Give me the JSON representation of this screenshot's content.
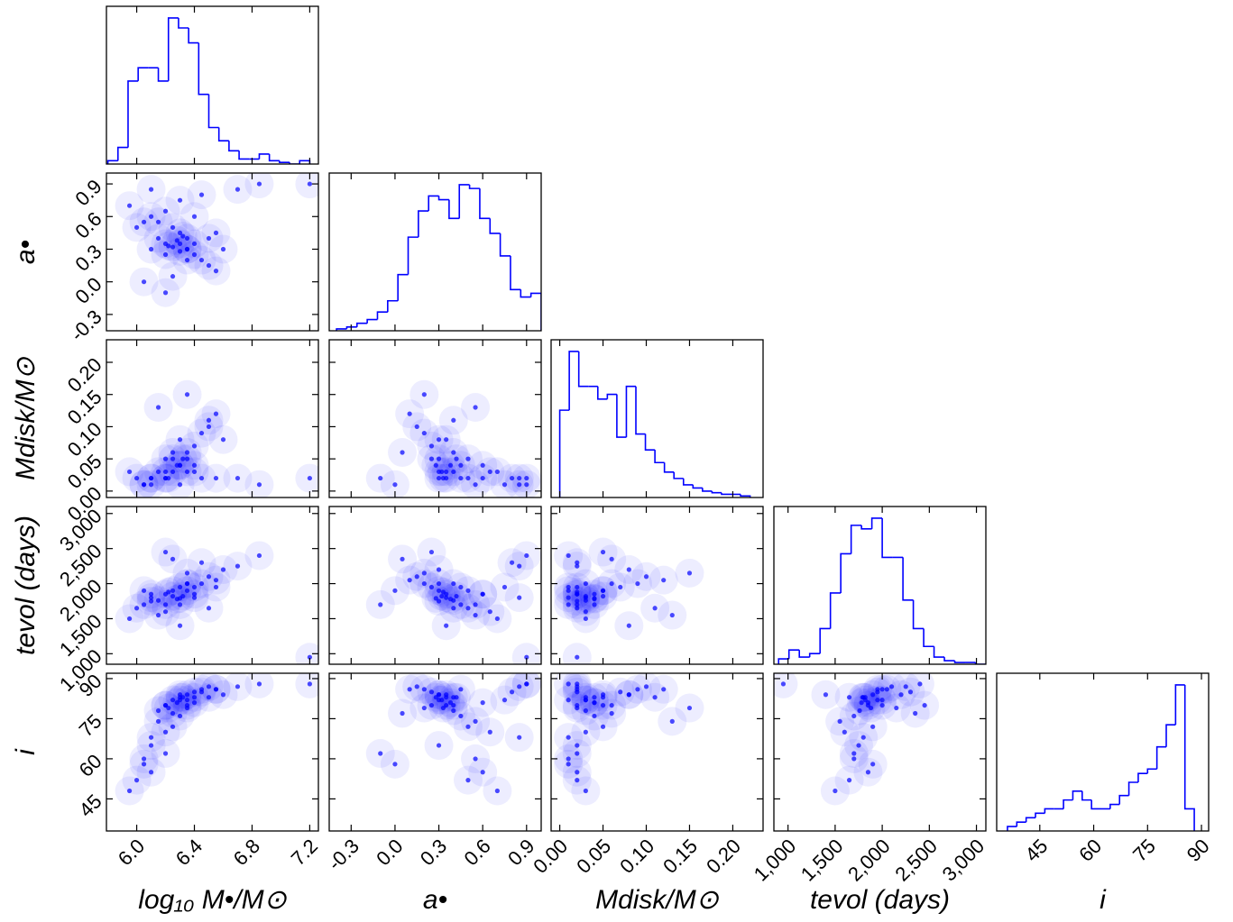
{
  "chart_data": {
    "type": "corner",
    "color": "#0000ff",
    "parameters": [
      {
        "label": "log₁₀ M•/M⊙",
        "lim": [
          5.79,
          7.26
        ],
        "ticks": [
          {
            "value": 6.0,
            "label": "6.0"
          },
          6.4,
          6.8,
          7.2
        ],
        "bins": [
          5.8,
          5.87,
          5.94,
          6.01,
          6.08,
          6.15,
          6.22,
          6.29,
          6.36,
          6.43,
          6.5,
          6.57,
          6.64,
          6.71,
          6.78,
          6.85,
          6.92,
          6.99,
          7.06,
          7.13,
          7.2
        ],
        "counts": [
          2,
          10,
          50,
          58,
          58,
          50,
          88,
          82,
          73,
          42,
          22,
          14,
          8,
          3,
          3,
          6,
          2,
          1,
          0,
          2
        ]
      },
      {
        "label": "a•",
        "lim": [
          -0.45,
          1.0
        ],
        "ticks": [
          -0.3,
          {
            "value": 0.0,
            "label": "0.0"
          },
          0.3,
          0.6,
          0.9
        ],
        "bins": [
          -0.4,
          -0.33,
          -0.26,
          -0.19,
          -0.12,
          -0.05,
          0.02,
          0.09,
          0.16,
          0.23,
          0.3,
          0.37,
          0.44,
          0.51,
          0.58,
          0.65,
          0.72,
          0.79,
          0.86,
          0.93,
          1.0
        ],
        "counts": [
          1,
          2,
          4,
          6,
          10,
          16,
          30,
          50,
          64,
          72,
          70,
          60,
          78,
          76,
          60,
          52,
          40,
          22,
          18,
          20
        ]
      },
      {
        "label": "Mdisk/M⊙",
        "lim": [
          -0.01,
          0.235
        ],
        "ticks": [
          {
            "value": 0,
            "label": "0.00"
          },
          0.05,
          {
            "value": 0.1,
            "label": "0.10"
          },
          0.15,
          {
            "value": 0.2,
            "label": "0.20"
          }
        ],
        "bins": [
          0,
          0.011,
          0.022,
          0.033,
          0.044,
          0.055,
          0.066,
          0.077,
          0.088,
          0.099,
          0.11,
          0.121,
          0.132,
          0.143,
          0.154,
          0.165,
          0.176,
          0.187,
          0.198,
          0.209,
          0.22
        ],
        "counts": [
          55,
          92,
          70,
          70,
          62,
          65,
          38,
          70,
          40,
          30,
          22,
          16,
          12,
          8,
          6,
          4,
          3,
          2,
          2,
          1
        ]
      },
      {
        "label": "tevol (days)",
        "lim": [
          850,
          3100
        ],
        "ticks": [
          {
            "value": 1000,
            "label": "1,000"
          },
          {
            "value": 1500,
            "label": "1,500"
          },
          {
            "value": 2000,
            "label": "2,000"
          },
          {
            "value": 2500,
            "label": "2,500"
          },
          {
            "value": 3000,
            "label": "3,000"
          }
        ],
        "bins": [
          900,
          1010,
          1120,
          1230,
          1340,
          1450,
          1560,
          1670,
          1780,
          1890,
          2000,
          2110,
          2220,
          2330,
          2440,
          2550,
          2660,
          2770,
          2880,
          2990,
          3100
        ],
        "counts": [
          3,
          8,
          4,
          6,
          20,
          40,
          62,
          78,
          76,
          82,
          60,
          60,
          36,
          20,
          10,
          4,
          2,
          1,
          1,
          0
        ]
      },
      {
        "label": "i",
        "lim": [
          33,
          92
        ],
        "ticks": [
          45,
          60,
          75,
          90
        ],
        "bins": [
          36,
          38.6,
          41.2,
          43.8,
          46.4,
          49,
          51.6,
          54.2,
          56.8,
          59.4,
          62,
          64.6,
          67.2,
          69.8,
          72.4,
          75,
          77.6,
          80.2,
          82.8,
          85.4,
          88
        ],
        "counts": [
          2,
          4,
          6,
          8,
          10,
          10,
          14,
          18,
          14,
          10,
          10,
          12,
          16,
          22,
          26,
          28,
          38,
          48,
          66,
          10
        ]
      }
    ],
    "samples": [
      [
        6.25,
        0.32,
        0.03,
        1820,
        82
      ],
      [
        6.3,
        0.28,
        0.04,
        1790,
        83
      ],
      [
        6.2,
        0.35,
        0.02,
        1850,
        80
      ],
      [
        6.35,
        0.3,
        0.05,
        1900,
        84
      ],
      [
        6.15,
        0.4,
        0.03,
        1760,
        78
      ],
      [
        6.4,
        0.25,
        0.07,
        1950,
        85
      ],
      [
        6.05,
        0.55,
        0.01,
        1700,
        60
      ],
      [
        6.1,
        0.6,
        0.02,
        1850,
        55
      ],
      [
        6.0,
        0.5,
        0.02,
        1650,
        52
      ],
      [
        6.45,
        0.2,
        0.09,
        2000,
        86
      ],
      [
        6.5,
        0.15,
        0.1,
        2100,
        87
      ],
      [
        6.55,
        0.1,
        0.12,
        2050,
        86
      ],
      [
        6.6,
        0.3,
        0.08,
        2200,
        84
      ],
      [
        6.3,
        0.45,
        0.04,
        1700,
        76
      ],
      [
        6.25,
        0.5,
        0.05,
        1900,
        72
      ],
      [
        6.2,
        0.65,
        0.03,
        1600,
        70
      ],
      [
        6.35,
        0.4,
        0.06,
        2000,
        80
      ],
      [
        6.4,
        0.35,
        0.03,
        1800,
        83
      ],
      [
        6.1,
        0.3,
        0.02,
        1750,
        65
      ],
      [
        6.05,
        0.0,
        0.01,
        1900,
        58
      ],
      [
        6.2,
        -0.1,
        0.02,
        1700,
        62
      ],
      [
        6.3,
        0.75,
        0.01,
        1950,
        82
      ],
      [
        6.45,
        0.8,
        0.02,
        2300,
        85
      ],
      [
        6.7,
        0.85,
        0.02,
        2250,
        87
      ],
      [
        6.85,
        0.9,
        0.01,
        2400,
        88
      ],
      [
        7.2,
        0.9,
        0.02,
        950,
        88
      ],
      [
        6.15,
        0.55,
        0.13,
        1550,
        74
      ],
      [
        6.35,
        0.2,
        0.15,
        2150,
        79
      ],
      [
        6.5,
        0.4,
        0.11,
        1650,
        83
      ],
      [
        5.95,
        0.7,
        0.03,
        1500,
        48
      ],
      [
        6.25,
        0.05,
        0.06,
        2350,
        77
      ],
      [
        6.4,
        0.6,
        0.04,
        1850,
        81
      ],
      [
        6.3,
        0.35,
        0.08,
        1400,
        84
      ],
      [
        6.2,
        0.25,
        0.05,
        2450,
        80
      ],
      [
        6.55,
        0.45,
        0.02,
        1950,
        86
      ],
      [
        6.1,
        0.85,
        0.01,
        1800,
        68
      ],
      [
        6.35,
        0.3,
        0.03,
        2000,
        82
      ],
      [
        6.28,
        0.38,
        0.04,
        1780,
        81
      ],
      [
        6.22,
        0.33,
        0.02,
        1880,
        79
      ],
      [
        6.32,
        0.42,
        0.05,
        1820,
        83
      ]
    ]
  }
}
